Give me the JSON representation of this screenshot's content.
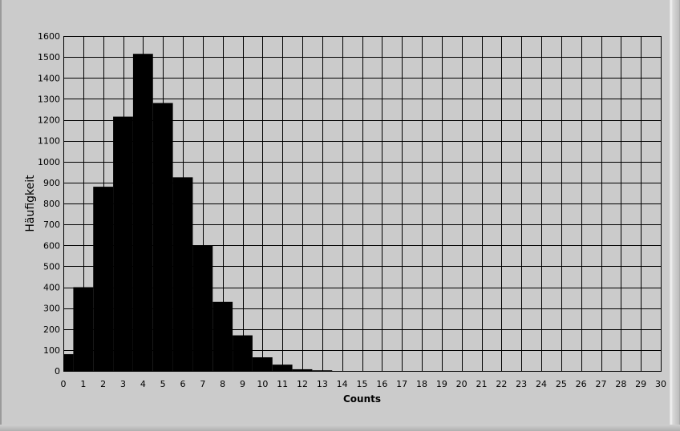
{
  "chart_data": {
    "type": "bar",
    "xlabel": "Counts",
    "ylabel": "Häufigkeit",
    "xlim": [
      0,
      30
    ],
    "ylim": [
      0,
      1600
    ],
    "x_ticks": [
      0,
      1,
      2,
      3,
      4,
      5,
      6,
      7,
      8,
      9,
      10,
      11,
      12,
      13,
      14,
      15,
      16,
      17,
      18,
      19,
      20,
      21,
      22,
      23,
      24,
      25,
      26,
      27,
      28,
      29,
      30
    ],
    "y_ticks": [
      0,
      100,
      200,
      300,
      400,
      500,
      600,
      700,
      800,
      900,
      1000,
      1100,
      1200,
      1300,
      1400,
      1500,
      1600
    ],
    "bin_edges": [
      0,
      0.5,
      1.5,
      2.5,
      3.5,
      4.5,
      5.5,
      6.5,
      7.5,
      8.5,
      9.5,
      10.5,
      11.5,
      12.5,
      13.5
    ],
    "values": [
      80,
      400,
      880,
      1215,
      1515,
      1280,
      925,
      600,
      330,
      170,
      65,
      30,
      8,
      3
    ],
    "grid": true,
    "colors": {
      "bar": "#000000",
      "plot_background": "#cbcbcb",
      "grid": "#000000"
    }
  }
}
